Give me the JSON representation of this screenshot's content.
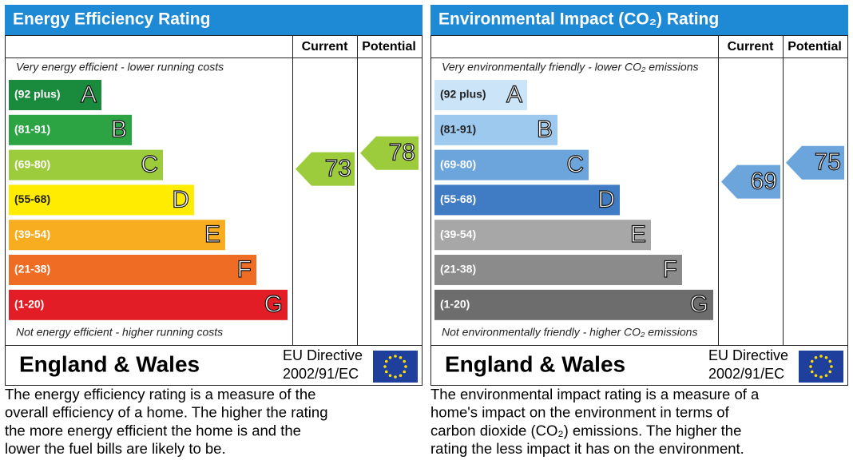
{
  "panels": [
    {
      "title": "Energy Efficiency Rating",
      "columns": [
        "Current",
        "Potential"
      ],
      "top_text": "Very energy efficient - lower running costs",
      "bottom_text": "Not energy efficient - higher running costs",
      "bands": [
        {
          "label": "(92 plus)",
          "letter": "A",
          "color": "#1a8a3c",
          "range": [
            92
          ]
        },
        {
          "label": "(81-91)",
          "letter": "B",
          "color": "#2ca444",
          "range": [
            81,
            91
          ]
        },
        {
          "label": "(69-80)",
          "letter": "C",
          "color": "#9ccb3b",
          "range": [
            69,
            80
          ]
        },
        {
          "label": "(55-68)",
          "letter": "D",
          "color": "#ffec00",
          "range": [
            55,
            68
          ]
        },
        {
          "label": "(39-54)",
          "letter": "E",
          "color": "#f7ad1f",
          "range": [
            39,
            54
          ]
        },
        {
          "label": "(21-38)",
          "letter": "F",
          "color": "#ef6c24",
          "range": [
            21,
            38
          ]
        },
        {
          "label": "(1-20)",
          "letter": "G",
          "color": "#e31d25",
          "range": [
            1,
            20
          ]
        }
      ],
      "current": 73,
      "potential": 78,
      "region": "England & Wales",
      "directive": [
        "EU Directive",
        "2002/91/EC"
      ],
      "description": [
        "The energy efficiency rating is a measure of the",
        "overall efficiency of a home. The higher the rating",
        "the more energy efficient the home is and the",
        "lower the fuel bills are likely to be."
      ]
    },
    {
      "title": "Environmental Impact (CO₂) Rating",
      "columns": [
        "Current",
        "Potential"
      ],
      "top_text": "Very environmentally friendly - lower CO₂ emissions",
      "bottom_text": "Not environmentally friendly - higher CO₂ emissions",
      "bands": [
        {
          "label": "(92 plus)",
          "letter": "A",
          "color": "#cbe4f7",
          "range": [
            92
          ]
        },
        {
          "label": "(81-91)",
          "letter": "B",
          "color": "#9dc9ef",
          "range": [
            81,
            91
          ]
        },
        {
          "label": "(69-80)",
          "letter": "C",
          "color": "#6ca4dc",
          "range": [
            69,
            80
          ]
        },
        {
          "label": "(55-68)",
          "letter": "D",
          "color": "#3f7cc4",
          "range": [
            55,
            68
          ]
        },
        {
          "label": "(39-54)",
          "letter": "E",
          "color": "#a7a7a7",
          "range": [
            39,
            54
          ]
        },
        {
          "label": "(21-38)",
          "letter": "F",
          "color": "#8b8b8b",
          "range": [
            21,
            38
          ]
        },
        {
          "label": "(1-20)",
          "letter": "G",
          "color": "#6d6d6d",
          "range": [
            1,
            20
          ]
        }
      ],
      "current": 69,
      "potential": 75,
      "region": "England & Wales",
      "directive": [
        "EU Directive",
        "2002/91/EC"
      ],
      "description": [
        "The environmental impact rating is a measure of a",
        "home's impact on the environment in terms of",
        "carbon dioxide (CO₂) emissions. The higher the",
        "rating the less impact it has on the environment."
      ]
    }
  ]
}
